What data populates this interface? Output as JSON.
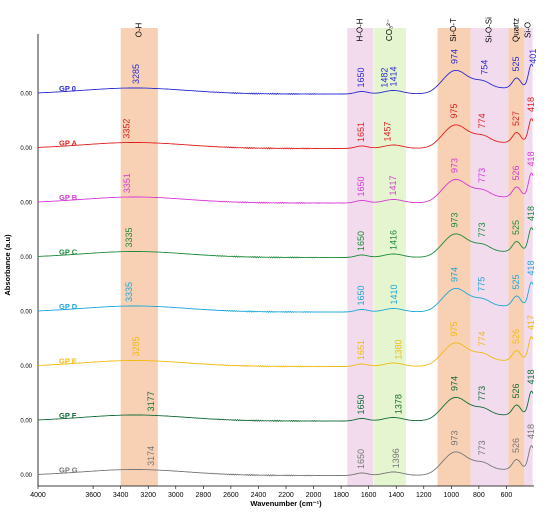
{
  "chart_data": {
    "type": "line",
    "xlabel": "Wavenumber (cm⁻¹)",
    "ylabel": "Absorbance (a.u)",
    "xlim": [
      4000,
      400
    ],
    "x_reversed": true,
    "x_ticks": [
      4000,
      3600,
      3400,
      3200,
      3000,
      2800,
      2600,
      2400,
      2200,
      2000,
      1800,
      1600,
      1400,
      1200,
      1000,
      800,
      600
    ],
    "y_tick_label": "0.00",
    "bands": [
      {
        "label": "O-H",
        "from": 3400,
        "to": 3130,
        "color": "#f7c9a8"
      },
      {
        "label": "H-O-H",
        "from": 1755,
        "to": 1565,
        "color": "#efd5ea"
      },
      {
        "label": "CO₃²⁻",
        "from": 1560,
        "to": 1330,
        "color": "#dff3c7"
      },
      {
        "label": "Si-O-T",
        "from": 1100,
        "to": 860,
        "color": "#f7c9a8"
      },
      {
        "label": "Si-O-Si",
        "from": 860,
        "to": 585,
        "color": "#efd5ea"
      },
      {
        "label": "Quartz",
        "from": 585,
        "to": 470,
        "color": "#f7c9a8"
      },
      {
        "label": "Si-O",
        "from": 470,
        "to": 410,
        "color": "#efd5ea"
      }
    ],
    "series": [
      {
        "name": "GP 0",
        "color": "#2b2bd0",
        "peaks": [
          3285,
          1650,
          1482,
          1414,
          974,
          754,
          525,
          401
        ]
      },
      {
        "name": "GP A",
        "color": "#e02020",
        "peaks": [
          3352,
          1651,
          1457,
          975,
          774,
          527,
          418
        ]
      },
      {
        "name": "GP B",
        "color": "#d63ad6",
        "peaks": [
          3351,
          1650,
          1417,
          973,
          773,
          526,
          418
        ]
      },
      {
        "name": "GP C",
        "color": "#1e8a3a",
        "peaks": [
          3335,
          1650,
          1416,
          973,
          773,
          525,
          418
        ]
      },
      {
        "name": "GP D",
        "color": "#1ea6d8",
        "peaks": [
          3335,
          1650,
          1410,
          974,
          775,
          525,
          418
        ]
      },
      {
        "name": "GP E",
        "color": "#f0bb10",
        "peaks": [
          3285,
          1651,
          1380,
          975,
          774,
          526,
          417
        ]
      },
      {
        "name": "GP F",
        "color": "#146b38",
        "peaks": [
          3177,
          1650,
          1378,
          974,
          773,
          526,
          418
        ]
      },
      {
        "name": "GP G",
        "color": "#777777",
        "peaks": [
          3174,
          1650,
          1396,
          973,
          773,
          526,
          418
        ]
      }
    ]
  }
}
